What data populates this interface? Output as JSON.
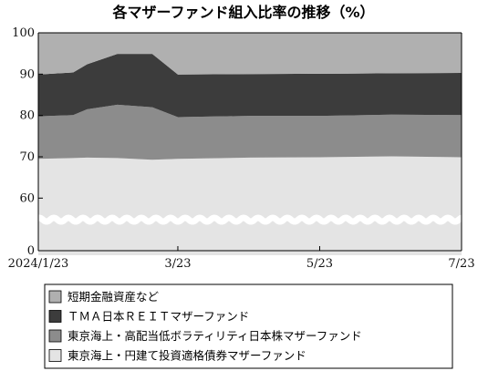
{
  "chart_data": {
    "type": "area",
    "stacked": true,
    "title": "各マザーファンド組入比率の推移（%）",
    "xlabel": "",
    "ylabel": "",
    "ylim": [
      0,
      100
    ],
    "y_axis_break": true,
    "yticks": [
      "0",
      "60",
      "70",
      "80",
      "90",
      "100"
    ],
    "x_tick_labels": [
      "2024/1/23",
      "3/23",
      "5/23",
      "7/23"
    ],
    "x": [
      "2024/1/23",
      "2024/2/07",
      "2024/2/13",
      "2024/2/26",
      "2024/3/12",
      "2024/3/23",
      "2024/4/23",
      "2024/5/23",
      "2024/6/23",
      "2024/7/23"
    ],
    "series": [
      {
        "name": "東京海上・円建て投資適格債券マザーファンド",
        "color": "#e4e4e4",
        "values": [
          69.5,
          69.7,
          69.8,
          69.7,
          69.3,
          69.5,
          69.8,
          69.9,
          70.1,
          69.9
        ]
      },
      {
        "name": "東京海上・高配当低ボラティリティ日本株マザーファンド",
        "color": "#8c8c8c",
        "values": [
          10.3,
          10.4,
          11.7,
          12.9,
          12.7,
          10.1,
          10.1,
          10.0,
          10.1,
          10.2
        ]
      },
      {
        "name": "ＴＭＡ日本ＲＥＩＴマザーファンド",
        "color": "#3c3c3c",
        "values": [
          10.1,
          10.3,
          10.9,
          12.3,
          12.9,
          10.3,
          10.1,
          10.2,
          10.0,
          10.2
        ]
      },
      {
        "name": "短期金融資産など",
        "color": "#b0b0b0",
        "values": [
          10.1,
          9.6,
          7.6,
          5.1,
          5.1,
          10.1,
          10.0,
          9.9,
          9.8,
          9.7
        ]
      }
    ],
    "legend": {
      "placement": "bottom",
      "entries": [
        {
          "label": "短期金融資産など",
          "color": "#b0b0b0"
        },
        {
          "label": "ＴＭＡ日本ＲＥＩＴマザーファンド",
          "color": "#3c3c3c"
        },
        {
          "label": "東京海上・高配当低ボラティリティ日本株マザーファンド",
          "color": "#8c8c8c"
        },
        {
          "label": "東京海上・円建て投資適格債券マザーファンド",
          "color": "#e4e4e4"
        }
      ]
    }
  }
}
